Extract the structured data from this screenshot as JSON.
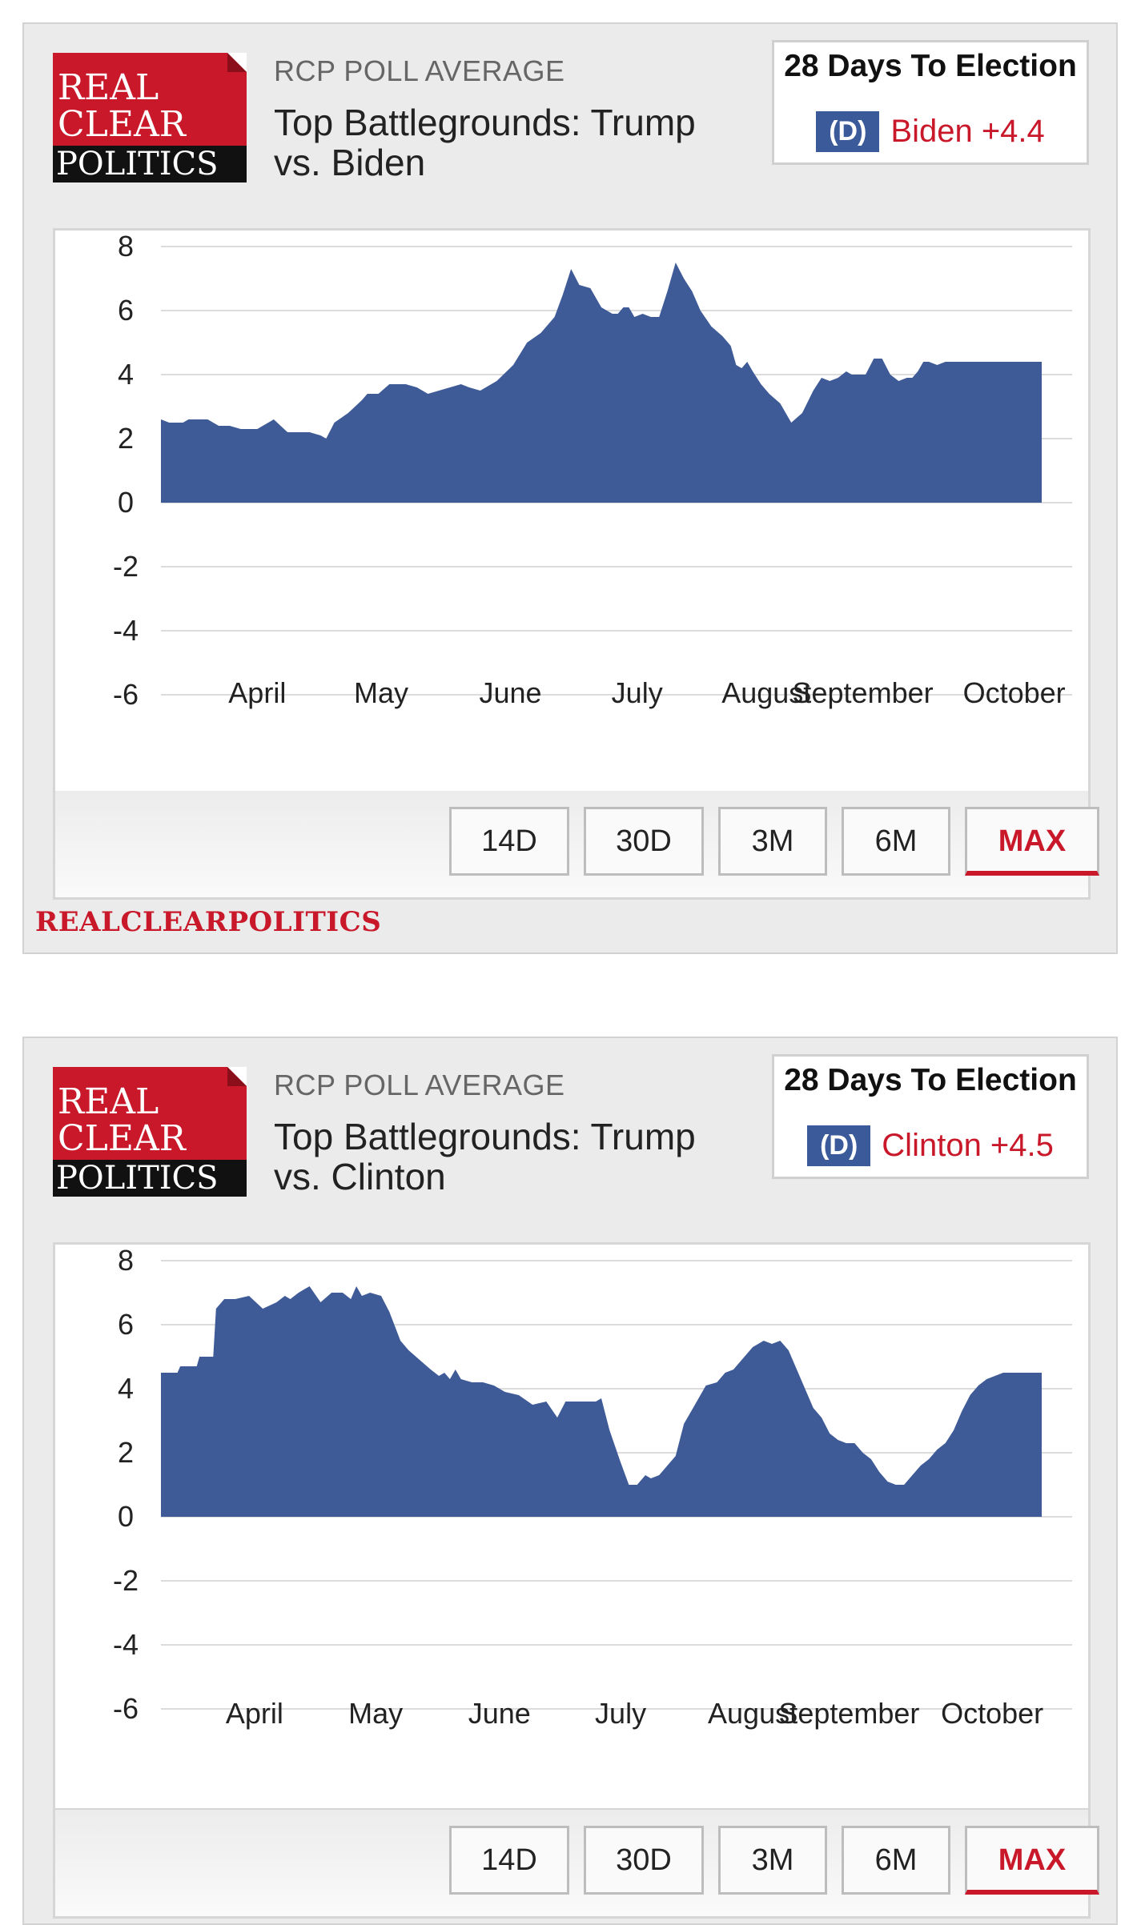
{
  "logo": {
    "line1": "REAL",
    "line2": "CLEAR",
    "line3": "POLITICS"
  },
  "colors": {
    "brand_red": "#c8182a",
    "dem_blue": "#3a5a9a",
    "area_fill": "#3e5b98"
  },
  "buttons": [
    "14D",
    "30D",
    "3M",
    "6M",
    "MAX"
  ],
  "widgets": [
    {
      "subtitle": "RCP POLL AVERAGE",
      "title": "Top Battlegrounds: Trump vs. Biden",
      "days_to_election": "28 Days To Election",
      "party": "(D)",
      "leader": "Biden +4.4",
      "footer_brand": "REALCLEARPOLITICS"
    },
    {
      "subtitle": "RCP POLL AVERAGE",
      "title": "Top Battlegrounds: Trump vs. Clinton",
      "days_to_election": "28 Days To Election",
      "party": "(D)",
      "leader": "Clinton +4.5"
    }
  ],
  "chart_data": [
    {
      "type": "area",
      "grid": true,
      "ylim": [
        -6,
        8
      ],
      "yticks": [
        8,
        6,
        4,
        2,
        0,
        -2,
        -4,
        -6
      ],
      "xticks": [
        "April",
        "May",
        "June",
        "July",
        "August",
        "September",
        "October"
      ],
      "xrange": [
        0,
        32
      ],
      "xtick_positions": [
        3.5,
        8,
        12.7,
        17.3,
        22,
        25.5,
        31
      ],
      "series": [
        {
          "x": [
            0,
            0.3,
            0.8,
            1,
            1.7,
            2.1,
            2.5,
            2.9,
            3.5,
            4.1,
            4.6,
            5,
            5.1,
            5.4,
            5.8,
            6,
            6.3,
            6.8,
            7.3,
            7.5,
            7.9,
            8.3,
            8.6,
            8.9,
            9.3,
            9.7,
            10.1,
            10.5,
            10.9,
            11.2,
            11.6,
            12.2,
            12.8,
            13.3,
            13.8,
            14.3,
            14.6,
            14.9,
            15.2,
            15.6,
            16,
            16.2,
            16.4,
            16.6,
            16.8,
            17,
            17.2,
            17.5,
            17.8,
            18.1,
            18.4,
            18.7,
            19,
            19.3,
            19.6,
            20,
            20.4,
            20.7,
            20.9,
            21.1,
            21.3,
            21.5,
            21.8,
            22.1,
            22.5,
            22.9,
            23.3,
            23.7,
            24,
            24.3,
            24.6,
            24.9,
            25.1,
            25.3,
            25.6,
            25.9,
            26.2,
            26.5,
            26.8,
            27.1,
            27.3,
            27.5,
            27.7,
            27.9,
            28.2,
            28.5,
            28.8,
            29,
            29.3,
            29.6,
            29.9,
            30.2,
            30.5,
            30.8,
            31,
            31.2,
            31.5,
            31.8,
            32
          ],
          "values": [
            2.6,
            2.5,
            2.5,
            2.6,
            2.6,
            2.4,
            2.4,
            2.3,
            2.3,
            2.6,
            2.2,
            2.2,
            2.2,
            2.2,
            2.1,
            2.0,
            2.5,
            2.8,
            3.2,
            3.4,
            3.4,
            3.7,
            3.7,
            3.7,
            3.6,
            3.4,
            3.5,
            3.6,
            3.7,
            3.6,
            3.5,
            3.8,
            4.3,
            5.0,
            5.3,
            5.8,
            6.5,
            7.3,
            6.8,
            6.7,
            6.1,
            6.0,
            5.9,
            5.9,
            6.1,
            6.1,
            5.8,
            5.9,
            5.8,
            5.8,
            6.6,
            7.5,
            7.0,
            6.6,
            6.0,
            5.5,
            5.2,
            4.9,
            4.3,
            4.2,
            4.4,
            4.1,
            3.7,
            3.4,
            3.1,
            2.5,
            2.8,
            3.5,
            3.9,
            3.8,
            3.9,
            4.1,
            4.0,
            4.0,
            4.0,
            4.5,
            4.5,
            4.0,
            3.8,
            3.9,
            3.9,
            4.1,
            4.4,
            4.4,
            4.3,
            4.4,
            4.4,
            4.4,
            4.4,
            4.4,
            4.4,
            4.4,
            4.4,
            4.4,
            4.4,
            4.4,
            4.4,
            4.4,
            4.4
          ]
        }
      ]
    },
    {
      "type": "area",
      "grid": true,
      "ylim": [
        -6,
        8
      ],
      "yticks": [
        8,
        6,
        4,
        2,
        0,
        -2,
        -4,
        -6
      ],
      "xticks": [
        "April",
        "May",
        "June",
        "July",
        "August",
        "September",
        "October"
      ],
      "xrange": [
        0,
        32
      ],
      "xtick_positions": [
        3.4,
        7.8,
        12.3,
        16.7,
        21.5,
        25,
        30.2
      ],
      "series": [
        {
          "x": [
            0,
            0.6,
            0.7,
            1.3,
            1.4,
            1.9,
            2,
            2.3,
            2.7,
            3.2,
            3.7,
            4.2,
            4.5,
            4.7,
            5,
            5.4,
            5.8,
            6.2,
            6.6,
            6.9,
            7,
            7.1,
            7.3,
            7.6,
            8,
            8.3,
            8.7,
            9,
            9.4,
            9.8,
            10.1,
            10.3,
            10.5,
            10.7,
            10.9,
            11.3,
            11.7,
            12.1,
            12.5,
            13,
            13.5,
            14,
            14.4,
            14.7,
            15.1,
            15.5,
            15.8,
            16,
            16.3,
            16.7,
            17,
            17.3,
            17.6,
            17.8,
            18.1,
            18.4,
            18.7,
            19,
            19.4,
            19.8,
            20.2,
            20.5,
            20.8,
            21.1,
            21.5,
            21.9,
            22.2,
            22.5,
            22.8,
            23.1,
            23.4,
            23.7,
            24,
            24.3,
            24.6,
            24.9,
            25.2,
            25.5,
            25.8,
            26.1,
            26.4,
            26.7,
            27,
            27.3,
            27.6,
            27.9,
            28.2,
            28.5,
            28.8,
            29.1,
            29.4,
            29.7,
            30,
            30.3,
            30.6,
            31,
            31.5,
            32
          ],
          "values": [
            4.5,
            4.5,
            4.7,
            4.7,
            5.0,
            5.0,
            6.5,
            6.8,
            6.8,
            6.9,
            6.5,
            6.7,
            6.9,
            6.8,
            7.0,
            7.2,
            6.7,
            7.0,
            7.0,
            6.8,
            7.0,
            7.2,
            6.9,
            7.0,
            6.9,
            6.4,
            5.5,
            5.2,
            4.9,
            4.6,
            4.4,
            4.5,
            4.3,
            4.6,
            4.3,
            4.2,
            4.2,
            4.1,
            3.9,
            3.8,
            3.5,
            3.6,
            3.1,
            3.6,
            3.6,
            3.6,
            3.6,
            3.7,
            2.7,
            1.7,
            1.0,
            1.0,
            1.3,
            1.2,
            1.3,
            1.6,
            1.9,
            2.9,
            3.5,
            4.1,
            4.2,
            4.5,
            4.6,
            4.9,
            5.3,
            5.5,
            5.4,
            5.5,
            5.2,
            4.6,
            4.0,
            3.4,
            3.1,
            2.6,
            2.4,
            2.3,
            2.3,
            2.0,
            1.8,
            1.4,
            1.1,
            1.0,
            1.0,
            1.3,
            1.6,
            1.8,
            2.1,
            2.3,
            2.7,
            3.3,
            3.8,
            4.1,
            4.3,
            4.4,
            4.5,
            4.5,
            4.5,
            4.5
          ]
        }
      ]
    }
  ]
}
